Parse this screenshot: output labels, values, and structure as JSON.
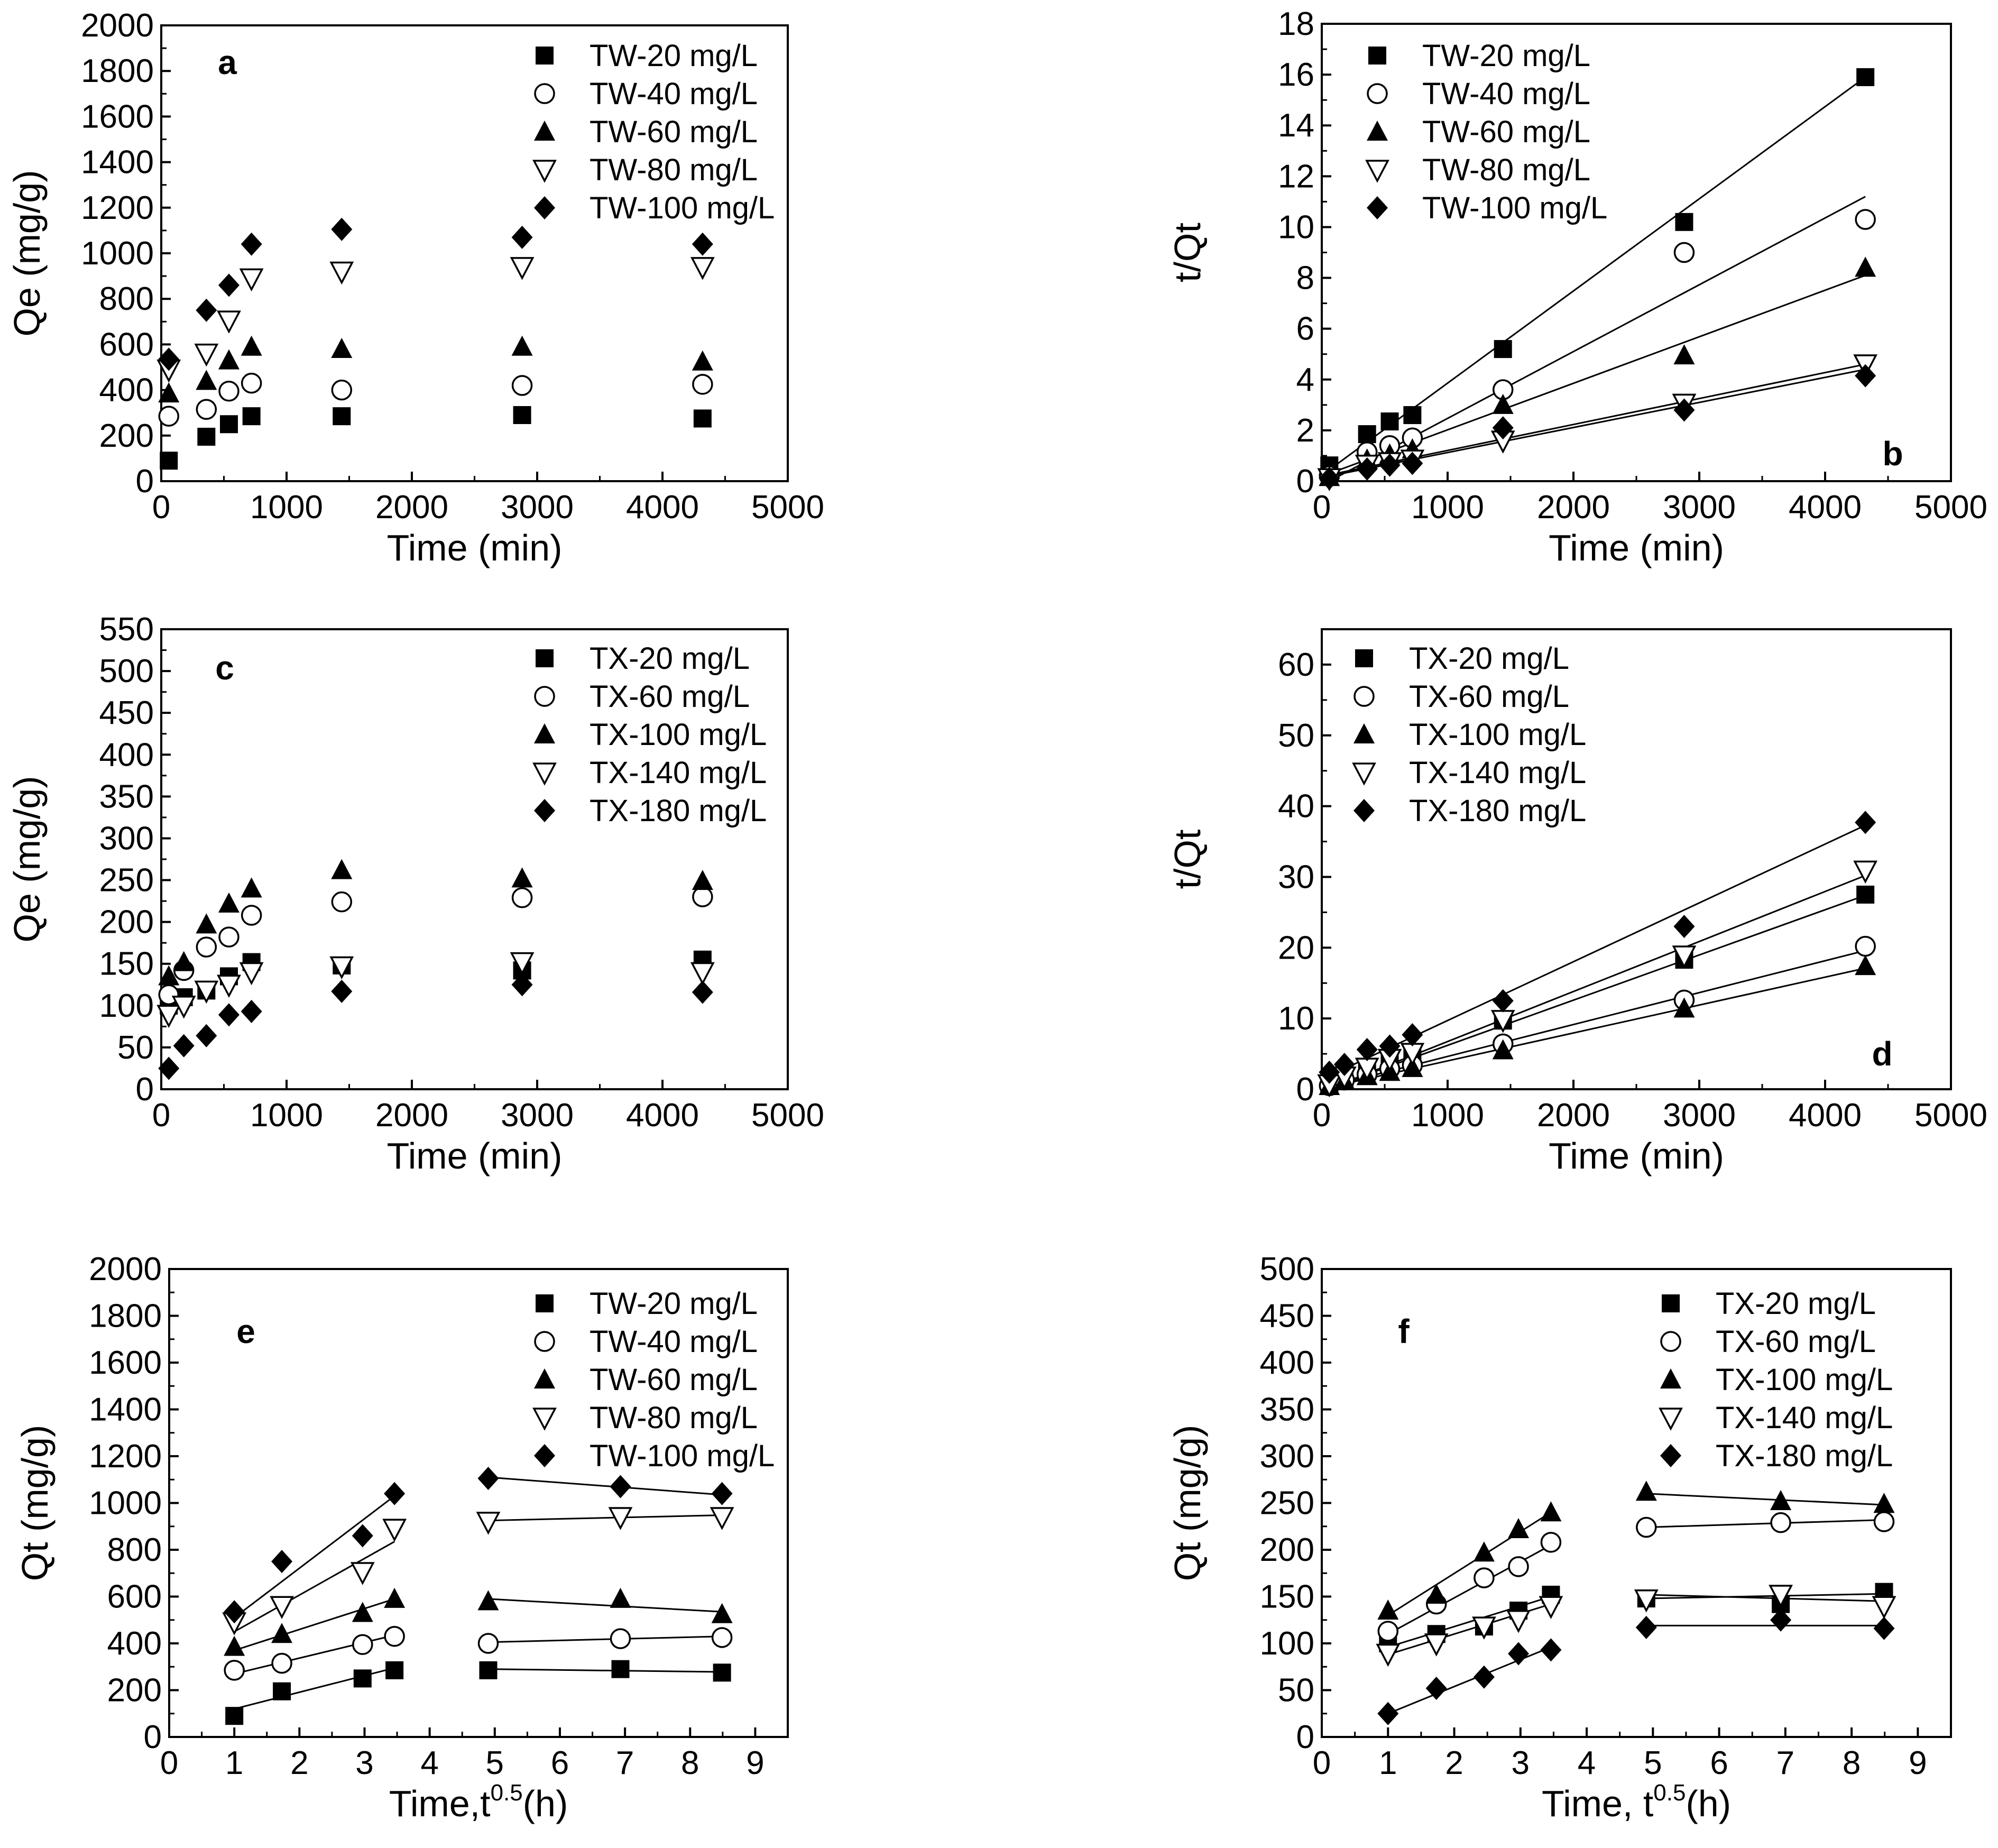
{
  "chart_data": [
    {
      "id": "a",
      "type": "scatter",
      "panel_label": "a",
      "xlabel": "Time (min)",
      "ylabel": "Qe (mg/g)",
      "xlim": [
        0,
        5000
      ],
      "ylim": [
        0,
        2000
      ],
      "xticks": [
        0,
        1000,
        2000,
        3000,
        4000,
        5000
      ],
      "yticks": [
        0,
        200,
        400,
        600,
        800,
        1000,
        1200,
        1400,
        1600,
        1800,
        2000
      ],
      "grid": false,
      "legend_position": "top-right",
      "x": [
        60,
        360,
        540,
        720,
        1440,
        2880,
        4320
      ],
      "series": [
        {
          "name": "TW-20 mg/L",
          "marker": "square",
          "values": [
            90,
            195,
            250,
            285,
            285,
            290,
            275
          ]
        },
        {
          "name": "TW-40 mg/L",
          "marker": "circle-open",
          "values": [
            285,
            315,
            395,
            430,
            400,
            420,
            425
          ]
        },
        {
          "name": "TW-60 mg/L",
          "marker": "triangle-up",
          "values": [
            385,
            440,
            530,
            590,
            580,
            590,
            525
          ]
        },
        {
          "name": "TW-80 mg/L",
          "marker": "triangle-down-open",
          "values": [
            490,
            560,
            705,
            890,
            920,
            940,
            940
          ]
        },
        {
          "name": "TW-100 mg/L",
          "marker": "diamond",
          "values": [
            535,
            750,
            860,
            1040,
            1105,
            1070,
            1040
          ]
        }
      ]
    },
    {
      "id": "b",
      "type": "scatter",
      "panel_label": "b",
      "xlabel": "Time (min)",
      "ylabel": "t/Qt",
      "xlim": [
        0,
        5000
      ],
      "ylim": [
        0,
        18
      ],
      "xticks": [
        0,
        1000,
        2000,
        3000,
        4000,
        5000
      ],
      "yticks": [
        0,
        2,
        4,
        6,
        8,
        10,
        12,
        14,
        16,
        18
      ],
      "grid": false,
      "legend_position": "top-left",
      "x": [
        60,
        360,
        540,
        720,
        1440,
        2880,
        4320
      ],
      "series": [
        {
          "name": "TW-20 mg/L",
          "marker": "square",
          "values": [
            0.62,
            1.85,
            2.35,
            2.6,
            5.2,
            10.2,
            15.9
          ],
          "fit": [
            [
              60,
              0.45
            ],
            [
              4320,
              15.9
            ]
          ]
        },
        {
          "name": "TW-40 mg/L",
          "marker": "circle-open",
          "values": [
            0.21,
            1.15,
            1.4,
            1.7,
            3.6,
            9.0,
            10.3
          ],
          "fit": [
            [
              60,
              0.0
            ],
            [
              4320,
              11.2
            ]
          ]
        },
        {
          "name": "TW-60 mg/L",
          "marker": "triangle-up",
          "values": [
            0.16,
            0.85,
            1.05,
            1.25,
            3.0,
            4.95,
            8.4
          ],
          "fit": [
            [
              60,
              0.3
            ],
            [
              4320,
              8.1
            ]
          ]
        },
        {
          "name": "TW-80 mg/L",
          "marker": "triangle-down-open",
          "values": [
            0.12,
            0.65,
            0.75,
            0.85,
            1.6,
            3.05,
            4.6
          ],
          "fit": [
            [
              60,
              0.25
            ],
            [
              4320,
              4.6
            ]
          ]
        },
        {
          "name": "TW-100 mg/L",
          "marker": "diamond",
          "values": [
            0.11,
            0.48,
            0.63,
            0.7,
            2.1,
            2.8,
            4.15
          ],
          "fit": [
            [
              60,
              0.2
            ],
            [
              4320,
              4.4
            ]
          ]
        }
      ]
    },
    {
      "id": "c",
      "type": "scatter",
      "panel_label": "c",
      "xlabel": "Time (min)",
      "ylabel": "Qe (mg/g)",
      "xlim": [
        0,
        5000
      ],
      "ylim": [
        0,
        550
      ],
      "xticks": [
        0,
        1000,
        2000,
        3000,
        4000,
        5000
      ],
      "yticks": [
        0,
        50,
        100,
        150,
        200,
        250,
        300,
        350,
        400,
        450,
        500,
        550
      ],
      "grid": false,
      "legend_position": "top-right",
      "x": [
        60,
        180,
        360,
        540,
        720,
        1440,
        2880,
        4320
      ],
      "series": [
        {
          "name": "TX-20 mg/L",
          "marker": "square",
          "values": [
            100,
            110,
            118,
            135,
            152,
            148,
            142,
            155
          ]
        },
        {
          "name": "TX-60 mg/L",
          "marker": "circle-open",
          "values": [
            113,
            142,
            170,
            182,
            208,
            224,
            229,
            230
          ]
        },
        {
          "name": "TX-100 mg/L",
          "marker": "triangle-up",
          "values": [
            135,
            152,
            197,
            222,
            240,
            262,
            252,
            249
          ]
        },
        {
          "name": "TX-140 mg/L",
          "marker": "triangle-down-open",
          "values": [
            89,
            100,
            118,
            125,
            140,
            147,
            152,
            140
          ]
        },
        {
          "name": "TX-180 mg/L",
          "marker": "diamond",
          "values": [
            25,
            52,
            64,
            89,
            93,
            117,
            125,
            116
          ]
        }
      ]
    },
    {
      "id": "d",
      "type": "scatter",
      "panel_label": "d",
      "xlabel": "Time (min)",
      "ylabel": "t/Qt",
      "xlim": [
        0,
        5000
      ],
      "ylim": [
        0,
        65
      ],
      "xticks": [
        0,
        1000,
        2000,
        3000,
        4000,
        5000
      ],
      "yticks": [
        0,
        10,
        20,
        30,
        40,
        50,
        60
      ],
      "grid": false,
      "legend_position": "top-left",
      "x": [
        60,
        180,
        360,
        540,
        720,
        1440,
        2880,
        4320
      ],
      "series": [
        {
          "name": "TX-20 mg/L",
          "marker": "square",
          "values": [
            0.6,
            1.6,
            3.05,
            4.0,
            4.7,
            9.7,
            18.3,
            27.5
          ],
          "fit": [
            [
              60,
              0.2
            ],
            [
              4320,
              27.4
            ]
          ]
        },
        {
          "name": "TX-60 mg/L",
          "marker": "circle-open",
          "values": [
            0.5,
            1.3,
            2.1,
            2.9,
            3.4,
            6.4,
            12.6,
            20.2
          ],
          "fit": [
            [
              60,
              0.4
            ],
            [
              4320,
              19.6
            ]
          ]
        },
        {
          "name": "TX-100 mg/L",
          "marker": "triangle-up",
          "values": [
            0.45,
            1.2,
            1.85,
            2.45,
            3.0,
            5.5,
            11.4,
            17.4
          ],
          "fit": [
            [
              60,
              0.3
            ],
            [
              4320,
              17.1
            ]
          ]
        },
        {
          "name": "TX-140 mg/L",
          "marker": "triangle-down-open",
          "values": [
            0.7,
            1.8,
            3.05,
            4.3,
            5.15,
            9.8,
            18.9,
            30.9
          ],
          "fit": [
            [
              60,
              0.1
            ],
            [
              4320,
              30.2
            ]
          ]
        },
        {
          "name": "TX-180 mg/L",
          "marker": "diamond",
          "values": [
            2.4,
            3.5,
            5.6,
            6.1,
            7.7,
            12.5,
            23.0,
            37.7
          ],
          "fit": [
            [
              60,
              1.9
            ],
            [
              4320,
              37.3
            ]
          ]
        }
      ]
    },
    {
      "id": "e",
      "type": "scatter",
      "panel_label": "e",
      "xlabel": "Time,t",
      "xlabel_sup": "0.5",
      "xlabel_tail": "(h)",
      "ylabel": "Qt (mg/g)",
      "xlim": [
        0,
        9.5
      ],
      "ylim": [
        0,
        2000
      ],
      "xticks": [
        0,
        1,
        2,
        3,
        4,
        5,
        6,
        7,
        8,
        9
      ],
      "yticks": [
        0,
        200,
        400,
        600,
        800,
        1000,
        1200,
        1400,
        1600,
        1800,
        2000
      ],
      "grid": false,
      "legend_position": "top-right",
      "x": [
        1.0,
        1.73,
        2.97,
        3.46,
        4.9,
        6.93,
        8.49
      ],
      "series": [
        {
          "name": "TW-20 mg/L",
          "marker": "square",
          "values": [
            90,
            195,
            250,
            285,
            285,
            290,
            275
          ],
          "fit": [
            [
              [
                1.0,
                120
              ],
              [
                3.46,
                295
              ]
            ],
            [
              [
                4.9,
                290
              ],
              [
                8.49,
                278
              ]
            ]
          ]
        },
        {
          "name": "TW-40 mg/L",
          "marker": "circle-open",
          "values": [
            285,
            315,
            395,
            430,
            400,
            420,
            425
          ],
          "fit": [
            [
              [
                1.0,
                270
              ],
              [
                3.46,
                435
              ]
            ],
            [
              [
                4.9,
                405
              ],
              [
                8.49,
                430
              ]
            ]
          ]
        },
        {
          "name": "TW-60 mg/L",
          "marker": "triangle-up",
          "values": [
            385,
            440,
            530,
            590,
            580,
            590,
            525
          ],
          "fit": [
            [
              [
                1.0,
                370
              ],
              [
                3.46,
                590
              ]
            ],
            [
              [
                4.9,
                590
              ],
              [
                8.49,
                535
              ]
            ]
          ]
        },
        {
          "name": "TW-80 mg/L",
          "marker": "triangle-down-open",
          "values": [
            490,
            560,
            705,
            890,
            920,
            940,
            940
          ],
          "fit": [
            [
              [
                1.0,
                450
              ],
              [
                3.46,
                835
              ]
            ],
            [
              [
                4.9,
                925
              ],
              [
                8.49,
                948
              ]
            ]
          ]
        },
        {
          "name": "TW-100 mg/L",
          "marker": "diamond",
          "values": [
            535,
            750,
            860,
            1040,
            1105,
            1070,
            1040
          ],
          "fit": [
            [
              [
                1.0,
                510
              ],
              [
                3.46,
                1030
              ]
            ],
            [
              [
                4.9,
                1110
              ],
              [
                8.49,
                1035
              ]
            ]
          ]
        }
      ]
    },
    {
      "id": "f",
      "type": "scatter",
      "panel_label": "f",
      "xlabel": "Time, t",
      "xlabel_sup": "0.5",
      "xlabel_tail": "(h)",
      "ylabel": "Qt (mg/g)",
      "xlim": [
        0,
        9.5
      ],
      "ylim": [
        0,
        500
      ],
      "xticks": [
        0,
        1,
        2,
        3,
        4,
        5,
        6,
        7,
        8,
        9
      ],
      "yticks": [
        0,
        50,
        100,
        150,
        200,
        250,
        300,
        350,
        400,
        450,
        500
      ],
      "grid": false,
      "legend_position": "top-right",
      "x": [
        1.0,
        1.73,
        2.45,
        2.97,
        3.46,
        4.9,
        6.93,
        8.49
      ],
      "series": [
        {
          "name": "TX-20 mg/L",
          "marker": "square",
          "values": [
            100,
            110,
            118,
            135,
            152,
            148,
            142,
            155
          ],
          "fit": [
            [
              [
                1.0,
                96
              ],
              [
                3.46,
                150
              ]
            ],
            [
              [
                4.9,
                148
              ],
              [
                8.49,
                153
              ]
            ]
          ]
        },
        {
          "name": "TX-60 mg/L",
          "marker": "circle-open",
          "values": [
            113,
            142,
            170,
            182,
            208,
            224,
            229,
            230
          ],
          "fit": [
            [
              [
                1.0,
                110
              ],
              [
                3.46,
                205
              ]
            ],
            [
              [
                4.9,
                224
              ],
              [
                8.49,
                232
              ]
            ]
          ]
        },
        {
          "name": "TX-100 mg/L",
          "marker": "triangle-up",
          "values": [
            135,
            152,
            197,
            222,
            240,
            262,
            252,
            249
          ],
          "fit": [
            [
              [
                1.0,
                130
              ],
              [
                3.46,
                240
              ]
            ],
            [
              [
                4.9,
                260
              ],
              [
                8.49,
                248
              ]
            ]
          ]
        },
        {
          "name": "TX-140 mg/L",
          "marker": "triangle-down-open",
          "values": [
            89,
            100,
            118,
            125,
            140,
            147,
            152,
            140
          ],
          "fit": [
            [
              [
                1.0,
                88
              ],
              [
                3.46,
                142
              ]
            ],
            [
              [
                4.9,
                152
              ],
              [
                8.49,
                145
              ]
            ]
          ]
        },
        {
          "name": "TX-180 mg/L",
          "marker": "diamond",
          "values": [
            25,
            52,
            64,
            89,
            93,
            117,
            125,
            116
          ],
          "fit": [
            [
              [
                1.0,
                25
              ],
              [
                3.46,
                96
              ]
            ],
            [
              [
                4.9,
                119
              ],
              [
                8.49,
                119
              ]
            ]
          ]
        }
      ]
    }
  ]
}
